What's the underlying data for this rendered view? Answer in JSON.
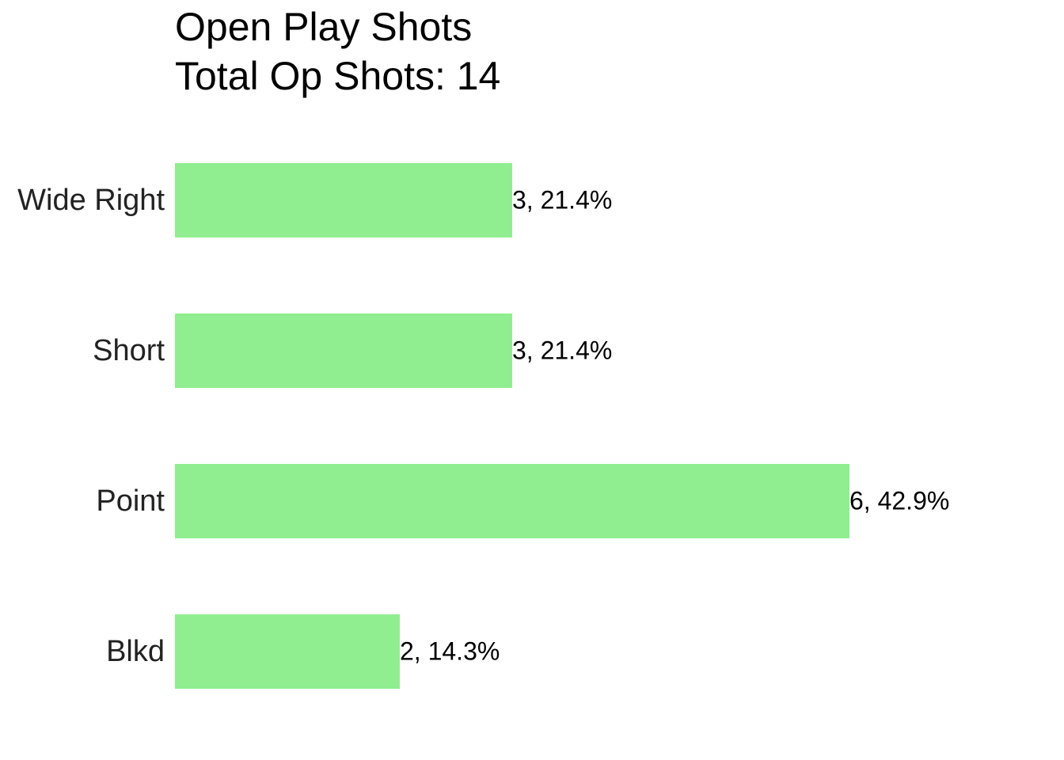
{
  "chart_data": {
    "type": "bar",
    "orientation": "horizontal",
    "title": "Open Play Shots",
    "subtitle": "Total Op Shots: 14",
    "categories": [
      "Wide Right",
      "Short",
      "Point",
      "Blkd"
    ],
    "values": [
      3,
      3,
      6,
      2
    ],
    "value_labels": [
      "3, 21.4%",
      "3, 21.4%",
      "6, 42.9%",
      "2, 14.3%"
    ],
    "color": "#90ee90"
  }
}
